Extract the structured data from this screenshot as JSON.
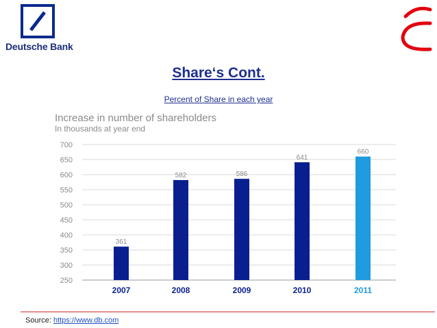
{
  "brand": {
    "name": "Deutsche Bank",
    "logo_icon": "deutsche-bank-slash-logo-icon",
    "accent_icon": "red-arc-mark-icon",
    "colors": {
      "navy": "#0a2a8c",
      "red": "#e3000f"
    }
  },
  "slide": {
    "title": "Share‘s Cont.",
    "subtitle": "Percent of Share in each year"
  },
  "chart_data": {
    "type": "bar",
    "title": "Increase in number of shareholders",
    "subtitle": "In thousands at year end",
    "categories": [
      "2007",
      "2008",
      "2009",
      "2010",
      "2011"
    ],
    "values": [
      361,
      582,
      586,
      641,
      660
    ],
    "value_labels": [
      "361",
      "582",
      "586",
      "641",
      "660"
    ],
    "ylim": [
      250,
      700
    ],
    "yticks": [
      250,
      300,
      350,
      400,
      450,
      500,
      550,
      600,
      650,
      700
    ],
    "grid": true,
    "xlabel": "",
    "ylabel": "",
    "colors": [
      "#0a1f8f",
      "#0a1f8f",
      "#0a1f8f",
      "#0a1f8f",
      "#1f9be0"
    ]
  },
  "footer": {
    "source_label": "Source: ",
    "source_link": "https://www.db.com"
  }
}
